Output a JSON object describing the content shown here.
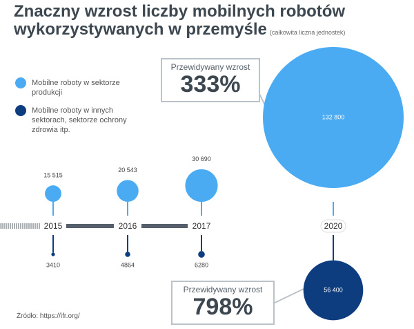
{
  "chart_data": {
    "type": "bubble",
    "title": "Znaczny wzrost liczby mobilnych robotów wykorzystywanych w przemyśle",
    "subtitle": "(całkowita liczna jednostek)",
    "categories": [
      "2015",
      "2016",
      "2017",
      "2020"
    ],
    "series": [
      {
        "name": "Mobilne roboty w sektorze produkcji",
        "color": "#4aabf2",
        "values": [
          15515,
          20543,
          30690,
          132800
        ],
        "value_labels": [
          "15 515",
          "20 543",
          "30 690",
          "132 800"
        ]
      },
      {
        "name": "Mobilne roboty w innych sektorach, sektorze ochrony zdrowia itp.",
        "color": "#0e3d7f",
        "values": [
          3410,
          4864,
          6280,
          56400
        ],
        "value_labels": [
          "3410",
          "4864",
          "6280",
          "56 400"
        ]
      }
    ],
    "annotations": [
      {
        "text": "Przewidywany wzrost",
        "value": "333%"
      },
      {
        "text": "Przewidywany wzrost",
        "value": "798%"
      }
    ],
    "source": "Źródło: https://ifr.org/"
  }
}
